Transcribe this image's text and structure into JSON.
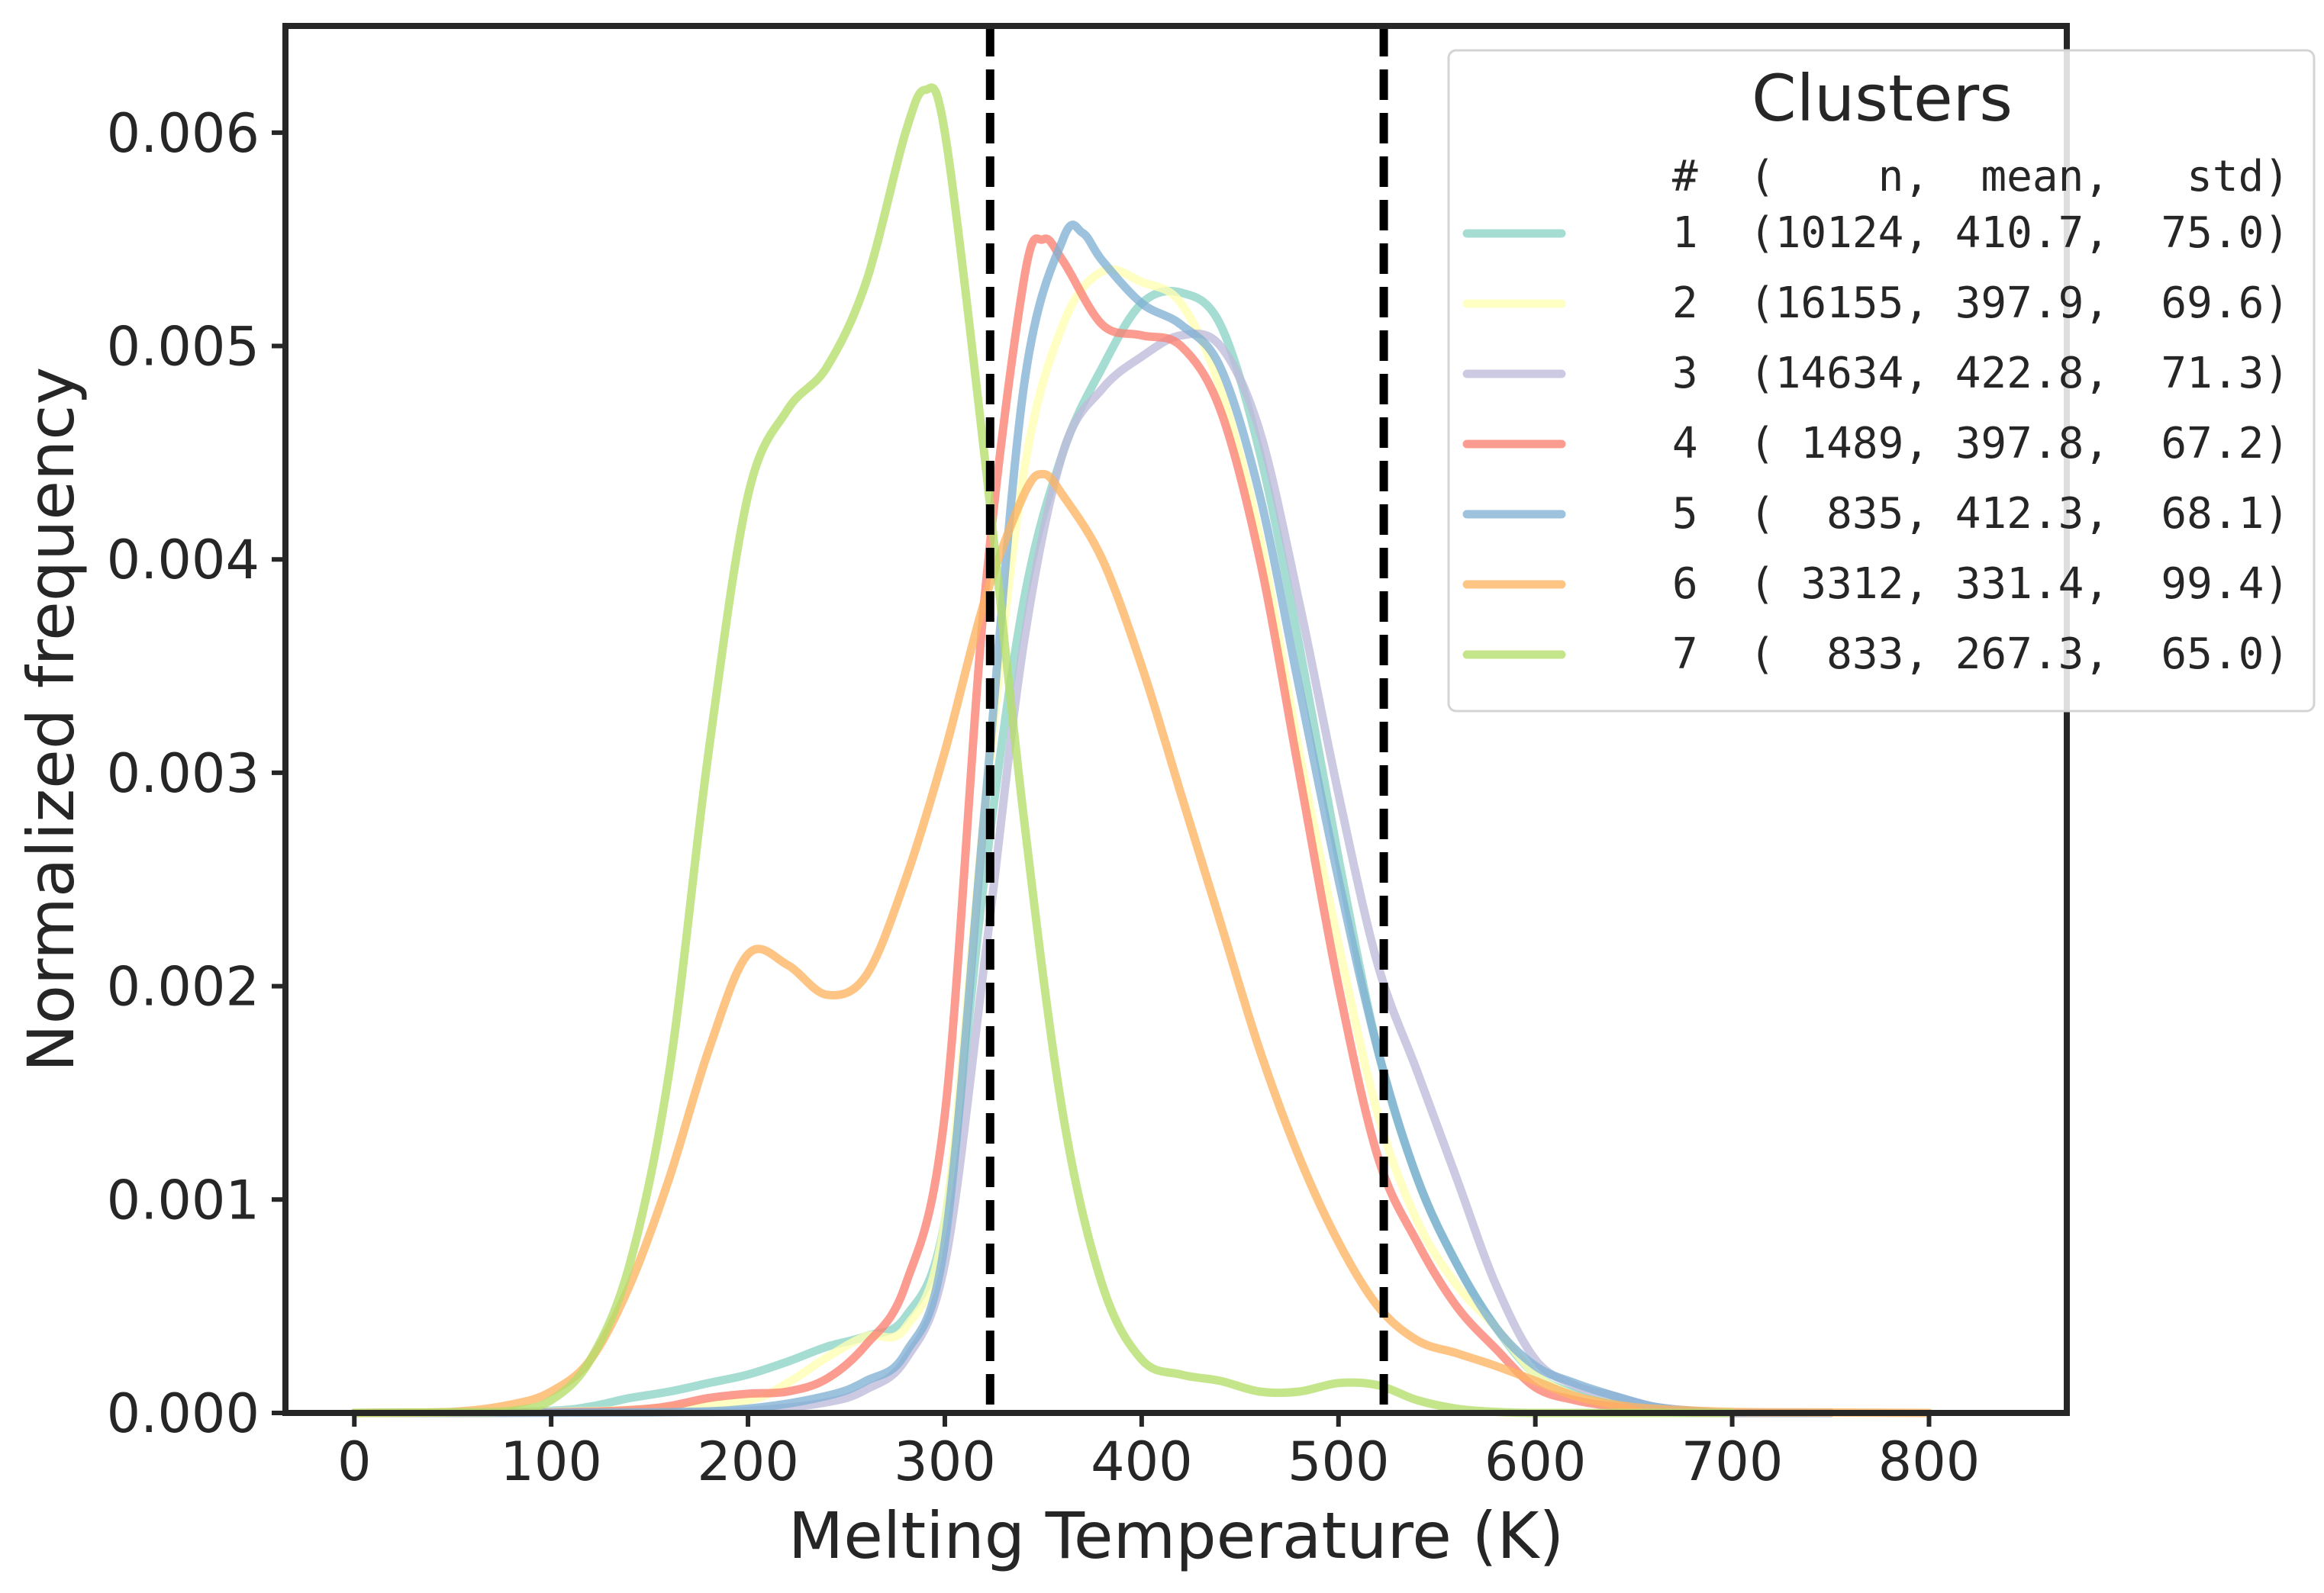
{
  "chart_data": {
    "type": "line",
    "xlabel": "Melting Temperature (K)",
    "ylabel": "Normalized frequency",
    "xlim": [
      -35,
      870
    ],
    "ylim": [
      0,
      0.0065
    ],
    "x_ticks": [
      0,
      100,
      200,
      300,
      400,
      500,
      600,
      700,
      800
    ],
    "x_tick_labels": [
      "0",
      "100",
      "200",
      "300",
      "400",
      "500",
      "600",
      "700",
      "800"
    ],
    "y_ticks": [
      0,
      0.001,
      0.002,
      0.003,
      0.004,
      0.005,
      0.006
    ],
    "y_tick_labels": [
      "0.000",
      "0.001",
      "0.002",
      "0.003",
      "0.004",
      "0.005",
      "0.006"
    ],
    "vlines": [
      323,
      523
    ],
    "legend": {
      "title": "Clusters",
      "header": "#  (    n,  mean,   std)",
      "placement": "upper right, outside"
    },
    "series": [
      {
        "name": "1",
        "legend_label": "1  (10124, 410.7,  75.0)",
        "color": "#8dd3c7",
        "x": [
          0,
          50,
          100,
          120,
          140,
          160,
          180,
          200,
          220,
          240,
          260,
          280,
          300,
          320,
          340,
          360,
          380,
          400,
          420,
          440,
          460,
          480,
          500,
          520,
          540,
          560,
          580,
          600,
          620,
          640,
          660,
          680,
          700,
          750
        ],
        "y": [
          0,
          3e-06,
          1e-05,
          3e-05,
          7e-05,
          0.0001,
          0.00014,
          0.00018,
          0.00024,
          0.00031,
          0.00036,
          0.00045,
          0.0009,
          0.0025,
          0.0038,
          0.0045,
          0.0049,
          0.0052,
          0.00525,
          0.0051,
          0.0045,
          0.0036,
          0.0026,
          0.0017,
          0.0011,
          0.0007,
          0.0004,
          0.00018,
          9e-05,
          4e-05,
          1e-05,
          0,
          0,
          0
        ]
      },
      {
        "name": "2",
        "legend_label": "2  (16155, 397.9,  69.6)",
        "color": "#ffffb3",
        "x": [
          0,
          100,
          150,
          200,
          220,
          240,
          260,
          280,
          300,
          320,
          340,
          360,
          380,
          400,
          420,
          440,
          460,
          480,
          500,
          520,
          540,
          560,
          580,
          600,
          620,
          640,
          660,
          700,
          750
        ],
        "y": [
          0,
          5e-06,
          2e-05,
          6e-05,
          0.00014,
          0.00026,
          0.00036,
          0.0004,
          0.0009,
          0.0028,
          0.0044,
          0.0051,
          0.00535,
          0.0053,
          0.0052,
          0.0048,
          0.0041,
          0.0031,
          0.0022,
          0.0014,
          0.0009,
          0.0006,
          0.0004,
          0.00018,
          8e-05,
          3e-05,
          1e-05,
          0,
          0
        ]
      },
      {
        "name": "3",
        "legend_label": "3  (14634, 422.8,  71.3)",
        "color": "#bebada",
        "x": [
          0,
          150,
          200,
          240,
          260,
          280,
          300,
          320,
          340,
          360,
          380,
          400,
          420,
          440,
          460,
          480,
          500,
          520,
          540,
          560,
          580,
          600,
          620,
          640,
          660,
          680,
          700,
          750
        ],
        "y": [
          0,
          3e-06,
          1e-05,
          5e-05,
          0.00011,
          0.00025,
          0.0007,
          0.0021,
          0.0036,
          0.0045,
          0.0048,
          0.00495,
          0.00505,
          0.005,
          0.0046,
          0.0038,
          0.0029,
          0.0021,
          0.0016,
          0.0011,
          0.0006,
          0.00025,
          0.00013,
          8e-05,
          3e-05,
          1e-05,
          0,
          0
        ]
      },
      {
        "name": "4",
        "legend_label": "4  ( 1489, 397.8,  67.2)",
        "color": "#fb8072",
        "x": [
          0,
          100,
          150,
          180,
          200,
          220,
          240,
          260,
          280,
          300,
          320,
          340,
          350,
          360,
          380,
          400,
          420,
          440,
          460,
          480,
          500,
          520,
          540,
          560,
          580,
          600,
          620,
          640,
          660,
          700,
          750
        ],
        "y": [
          0,
          3e-06,
          2e-05,
          7e-05,
          9e-05,
          0.0001,
          0.00016,
          0.00032,
          0.0006,
          0.0014,
          0.0038,
          0.0053,
          0.0055,
          0.0054,
          0.0051,
          0.00505,
          0.005,
          0.0047,
          0.004,
          0.003,
          0.002,
          0.0012,
          0.0008,
          0.0005,
          0.0003,
          0.00012,
          6e-05,
          3e-05,
          1e-05,
          0,
          0
        ]
      },
      {
        "name": "5",
        "legend_label": "5  (  835, 412.3,  68.1)",
        "color": "#80b1d3",
        "x": [
          0,
          150,
          200,
          240,
          260,
          280,
          300,
          320,
          340,
          360,
          370,
          380,
          400,
          420,
          440,
          460,
          480,
          500,
          520,
          540,
          560,
          580,
          600,
          620,
          640,
          660,
          680,
          700,
          750
        ],
        "y": [
          0,
          3e-06,
          2e-05,
          8e-05,
          0.00015,
          0.00028,
          0.0008,
          0.0028,
          0.0048,
          0.0055,
          0.00553,
          0.0054,
          0.0052,
          0.0051,
          0.0049,
          0.0043,
          0.0034,
          0.0025,
          0.0017,
          0.0011,
          0.0007,
          0.0004,
          0.00022,
          0.00014,
          8e-05,
          3e-05,
          1e-05,
          0,
          0
        ]
      },
      {
        "name": "6",
        "legend_label": "6  ( 3312, 331.4,  99.4)",
        "color": "#fdb462",
        "x": [
          0,
          50,
          80,
          100,
          120,
          140,
          160,
          180,
          200,
          220,
          240,
          260,
          280,
          300,
          320,
          340,
          350,
          360,
          380,
          400,
          420,
          440,
          460,
          480,
          500,
          520,
          540,
          560,
          580,
          600,
          620,
          640,
          660,
          700,
          750,
          800
        ],
        "y": [
          0,
          5e-06,
          4e-05,
          0.0001,
          0.00025,
          0.0006,
          0.0011,
          0.0017,
          0.00215,
          0.0021,
          0.00196,
          0.00205,
          0.0025,
          0.0031,
          0.0038,
          0.0043,
          0.0044,
          0.0043,
          0.004,
          0.0035,
          0.0029,
          0.0023,
          0.0017,
          0.0012,
          0.0008,
          0.0005,
          0.00034,
          0.00028,
          0.00022,
          0.00015,
          8e-05,
          4e-05,
          2e-05,
          5e-06,
          2e-06,
          0
        ]
      },
      {
        "name": "7",
        "legend_label": "7  (  833, 267.3,  65.0)",
        "color": "#b3de69",
        "x": [
          0,
          50,
          80,
          100,
          120,
          140,
          160,
          180,
          200,
          220,
          240,
          260,
          280,
          290,
          300,
          320,
          340,
          360,
          380,
          400,
          420,
          440,
          460,
          480,
          500,
          520,
          540,
          560,
          580,
          600,
          650,
          700
        ],
        "y": [
          0,
          3e-06,
          1e-05,
          6e-05,
          0.00025,
          0.0007,
          0.0016,
          0.0031,
          0.0043,
          0.0047,
          0.0049,
          0.0053,
          0.006,
          0.0062,
          0.006,
          0.0045,
          0.0028,
          0.0014,
          0.0006,
          0.00025,
          0.00018,
          0.00015,
          0.0001,
          0.0001,
          0.00014,
          0.00013,
          6e-05,
          2e-05,
          5e-06,
          0,
          0,
          0
        ]
      }
    ]
  }
}
